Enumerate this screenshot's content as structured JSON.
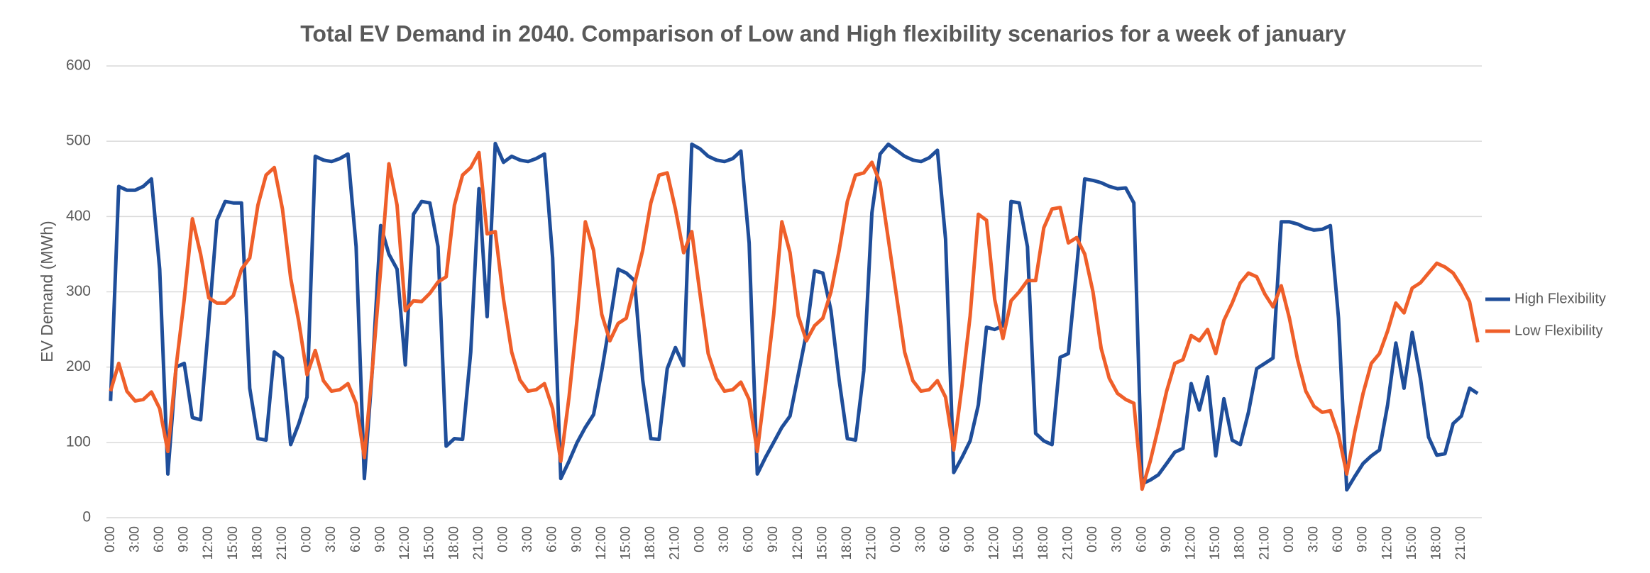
{
  "chart_data": {
    "type": "line",
    "title": "Total EV Demand in 2040. Comparison of Low and High flexibility scenarios for a week of january",
    "y_label": "EV Demand (MWh)",
    "categories": [
      "0:00",
      null,
      null,
      "3:00",
      null,
      null,
      "6:00",
      null,
      null,
      "9:00",
      null,
      null,
      "12:00",
      null,
      null,
      "15:00",
      null,
      null,
      "18:00",
      null,
      null,
      "21:00",
      null,
      null,
      "0:00",
      null,
      null,
      "3:00",
      null,
      null,
      "6:00",
      null,
      null,
      "9:00",
      null,
      null,
      "12:00",
      null,
      null,
      "15:00",
      null,
      null,
      "18:00",
      null,
      null,
      "21:00",
      null,
      null,
      "0:00",
      null,
      null,
      "3:00",
      null,
      null,
      "6:00",
      null,
      null,
      "9:00",
      null,
      null,
      "12:00",
      null,
      null,
      "15:00",
      null,
      null,
      "18:00",
      null,
      null,
      "21:00",
      null,
      null,
      "0:00",
      null,
      null,
      "3:00",
      null,
      null,
      "6:00",
      null,
      null,
      "9:00",
      null,
      null,
      "12:00",
      null,
      null,
      "15:00",
      null,
      null,
      "18:00",
      null,
      null,
      "21:00",
      null,
      null,
      "0:00",
      null,
      null,
      "3:00",
      null,
      null,
      "6:00",
      null,
      null,
      "9:00",
      null,
      null,
      "12:00",
      null,
      null,
      "15:00",
      null,
      null,
      "18:00",
      null,
      null,
      "21:00",
      null,
      null,
      "0:00",
      null,
      null,
      "3:00",
      null,
      null,
      "6:00",
      null,
      null,
      "9:00",
      null,
      null,
      "12:00",
      null,
      null,
      "15:00",
      null,
      null,
      "18:00",
      null,
      null,
      "21:00",
      null,
      null,
      "0:00",
      null,
      null,
      "3:00",
      null,
      null,
      "6:00",
      null,
      null,
      "9:00",
      null,
      null,
      "12:00",
      null,
      null,
      "15:00",
      null,
      null,
      "18:00",
      null,
      null,
      "21:00",
      null,
      null
    ],
    "series": [
      {
        "name": "High Flexibility",
        "color": "#1f4e9a",
        "values": [
          155,
          440,
          435,
          435,
          440,
          450,
          330,
          58,
          200,
          205,
          133,
          130,
          260,
          395,
          420,
          418,
          418,
          172,
          105,
          103,
          220,
          212,
          97,
          125,
          160,
          480,
          475,
          473,
          477,
          483,
          360,
          52,
          200,
          388,
          350,
          330,
          203,
          403,
          420,
          418,
          360,
          95,
          105,
          104,
          220,
          437,
          267,
          497,
          472,
          480,
          475,
          473,
          477,
          483,
          345,
          52,
          75,
          100,
          120,
          137,
          195,
          260,
          330,
          325,
          315,
          183,
          105,
          104,
          198,
          226,
          202,
          496,
          490,
          480,
          475,
          473,
          477,
          487,
          365,
          58,
          80,
          100,
          120,
          135,
          190,
          245,
          328,
          325,
          275,
          183,
          105,
          103,
          195,
          405,
          483,
          496,
          488,
          480,
          475,
          473,
          478,
          488,
          370,
          60,
          80,
          102,
          150,
          253,
          250,
          255,
          420,
          418,
          360,
          112,
          102,
          97,
          213,
          218,
          330,
          450,
          448,
          445,
          440,
          437,
          438,
          418,
          45,
          50,
          57,
          72,
          87,
          92,
          178,
          143,
          187,
          82,
          158,
          103,
          97,
          140,
          198,
          205,
          212,
          393,
          393,
          390,
          385,
          382,
          383,
          388,
          265,
          37,
          55,
          72,
          82,
          90,
          150,
          232,
          172,
          246,
          185,
          107,
          83,
          85,
          125,
          135,
          172,
          165
        ]
      },
      {
        "name": "Low Flexibility",
        "color": "#ef5f2a",
        "values": [
          168,
          205,
          168,
          155,
          157,
          167,
          145,
          88,
          200,
          290,
          397,
          350,
          292,
          285,
          285,
          295,
          330,
          345,
          415,
          455,
          465,
          410,
          318,
          260,
          190,
          222,
          182,
          168,
          170,
          178,
          152,
          80,
          200,
          330,
          470,
          415,
          275,
          288,
          287,
          298,
          313,
          320,
          415,
          455,
          465,
          485,
          377,
          380,
          290,
          220,
          183,
          168,
          170,
          178,
          145,
          75,
          160,
          265,
          393,
          355,
          270,
          235,
          258,
          265,
          310,
          355,
          418,
          455,
          458,
          410,
          352,
          380,
          298,
          218,
          185,
          168,
          170,
          180,
          157,
          88,
          175,
          270,
          393,
          352,
          268,
          235,
          255,
          265,
          300,
          355,
          420,
          455,
          458,
          472,
          445,
          370,
          295,
          220,
          182,
          168,
          170,
          182,
          160,
          90,
          175,
          268,
          403,
          395,
          290,
          238,
          288,
          300,
          315,
          315,
          385,
          410,
          412,
          365,
          372,
          350,
          300,
          225,
          185,
          165,
          157,
          152,
          38,
          75,
          120,
          168,
          205,
          210,
          242,
          235,
          250,
          218,
          262,
          285,
          312,
          325,
          320,
          297,
          280,
          308,
          265,
          210,
          168,
          148,
          140,
          142,
          110,
          58,
          115,
          165,
          205,
          218,
          248,
          285,
          272,
          305,
          312,
          325,
          338,
          333,
          325,
          308,
          287,
          233
        ]
      }
    ],
    "ylim": [
      0,
      600
    ],
    "yticks": [
      0,
      100,
      200,
      300,
      400,
      500,
      600
    ],
    "grid": true,
    "legend": "right"
  }
}
